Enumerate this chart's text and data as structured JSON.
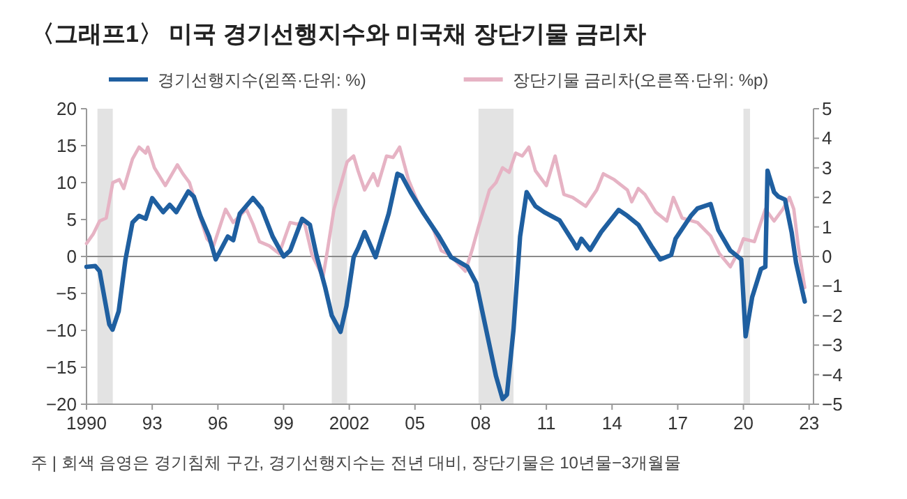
{
  "chart_data": {
    "type": "line",
    "title": "〈그래프1〉 미국 경기선행지수와 미국채 장단기물 금리차",
    "legend": "top",
    "xlim": [
      1990,
      2023.2
    ],
    "xticks": [
      {
        "value": 1990,
        "label": "1990"
      },
      {
        "value": 1993,
        "label": "93"
      },
      {
        "value": 1996,
        "label": "96"
      },
      {
        "value": 1999,
        "label": "99"
      },
      {
        "value": 2002,
        "label": "2002"
      },
      {
        "value": 2005,
        "label": "05"
      },
      {
        "value": 2008,
        "label": "08"
      },
      {
        "value": 2011,
        "label": "11"
      },
      {
        "value": 2014,
        "label": "14"
      },
      {
        "value": 2017,
        "label": "17"
      },
      {
        "value": 2020,
        "label": "20"
      },
      {
        "value": 2023,
        "label": "23"
      }
    ],
    "ylim": [
      -20,
      20
    ],
    "yticks": [
      {
        "value": -20,
        "label": "−20"
      },
      {
        "value": -15,
        "label": "−15"
      },
      {
        "value": -10,
        "label": "−10"
      },
      {
        "value": -5,
        "label": "−5"
      },
      0,
      5,
      10,
      15,
      20
    ],
    "y2lim": [
      -5,
      5
    ],
    "y2ticks": [
      {
        "value": -5,
        "label": "−5"
      },
      {
        "value": -4,
        "label": "−4"
      },
      {
        "value": -3,
        "label": "−3"
      },
      {
        "value": -2,
        "label": "−2"
      },
      {
        "value": -1,
        "label": "−1"
      },
      0,
      1,
      2,
      3,
      4,
      5
    ],
    "bands": [
      {
        "axis": "x",
        "from": 1990.5,
        "to": 1991.2,
        "color": "#e3e3e3"
      },
      {
        "axis": "x",
        "from": 2001.2,
        "to": 2001.9,
        "color": "#e3e3e3"
      },
      {
        "axis": "x",
        "from": 2007.9,
        "to": 2009.5,
        "color": "#e3e3e3"
      },
      {
        "axis": "x",
        "from": 2020.0,
        "to": 2020.3,
        "color": "#e3e3e3"
      }
    ],
    "ref_lines": [
      {
        "axis": "y",
        "value": 0,
        "color": "#8a8a8a"
      }
    ],
    "series": [
      {
        "name": "경기선행지수(왼쪽·단위: %)",
        "color": "#1f5fa0",
        "axis": "y",
        "x": [
          1990.0,
          1990.4,
          1990.6,
          1991.04,
          1991.19,
          1991.47,
          1991.78,
          1992.1,
          1992.4,
          1992.7,
          1993.0,
          1993.5,
          1993.8,
          1994.1,
          1994.65,
          1994.9,
          1995.2,
          1995.6,
          1995.9,
          1996.45,
          1996.7,
          1997.0,
          1997.6,
          1998.0,
          1998.5,
          1999.0,
          1999.3,
          1999.85,
          2000.2,
          2000.5,
          2000.9,
          2001.2,
          2001.6,
          2001.87,
          2002.2,
          2002.4,
          2002.7,
          2003.2,
          2003.8,
          2004.2,
          2004.4,
          2004.8,
          2005.4,
          2006.1,
          2006.65,
          2007.4,
          2007.8,
          2008.2,
          2008.7,
          2009.0,
          2009.2,
          2009.5,
          2009.8,
          2010.1,
          2010.5,
          2010.9,
          2011.6,
          2012.2,
          2012.4,
          2012.6,
          2013.0,
          2013.5,
          2014.3,
          2014.7,
          2015.2,
          2015.8,
          2016.2,
          2016.7,
          2016.9,
          2017.6,
          2017.9,
          2018.5,
          2018.85,
          2019.4,
          2019.9,
          2020.1,
          2020.4,
          2020.8,
          2021.0,
          2021.1,
          2021.4,
          2021.6,
          2021.9,
          2022.2,
          2022.4,
          2022.8
        ],
        "values": [
          -1.4,
          -1.3,
          -2,
          -9.2,
          -9.9,
          -7.4,
          -0.4,
          4.6,
          5.5,
          5.1,
          7.9,
          6.0,
          7.0,
          6.0,
          8.8,
          8.1,
          5.5,
          2.7,
          -0.4,
          2.7,
          2.2,
          5.8,
          7.9,
          6.5,
          2.7,
          0,
          0.8,
          5.1,
          4.3,
          0.2,
          -4.2,
          -8.0,
          -10.2,
          -6.7,
          -0.1,
          1.1,
          3.3,
          -0.1,
          5.8,
          11.2,
          10.9,
          8.7,
          5.8,
          2.7,
          -0.1,
          -1.4,
          -3.6,
          -9.2,
          -16.2,
          -19.3,
          -18.7,
          -9.9,
          2.7,
          8.7,
          6.8,
          6.0,
          4.9,
          2.1,
          1.1,
          2.4,
          0.9,
          3.3,
          6.3,
          5.5,
          4.3,
          1.4,
          -0.4,
          0.2,
          2.4,
          5.5,
          6.5,
          7.1,
          3.6,
          0.8,
          -0.4,
          -10.8,
          -5.5,
          -1.7,
          -1.4,
          11.6,
          8.7,
          8.1,
          7.7,
          3.3,
          -0.8,
          -6.1
        ]
      },
      {
        "name": "장단기물 금리차(오른쪽·단위: %p)",
        "color": "#e6b3c4",
        "axis": "y2",
        "x": [
          1990.0,
          1990.3,
          1990.6,
          1990.9,
          1991.2,
          1991.5,
          1991.7,
          1992.1,
          1992.4,
          1992.7,
          1992.8,
          1993.1,
          1993.6,
          1994.15,
          1994.4,
          1994.7,
          1995.2,
          1995.5,
          1995.8,
          1996.35,
          1996.7,
          1997.3,
          1997.6,
          1997.9,
          1998.35,
          1998.8,
          1999.3,
          1999.6,
          1999.95,
          2000.3,
          2000.8,
          2001.0,
          2001.3,
          2001.9,
          2002.2,
          2002.4,
          2002.7,
          2003.1,
          2003.3,
          2003.7,
          2004.0,
          2004.3,
          2004.7,
          2005.2,
          2005.8,
          2006.2,
          2006.6,
          2007.3,
          2007.6,
          2007.9,
          2008.4,
          2008.7,
          2009.0,
          2009.3,
          2009.6,
          2009.9,
          2010.2,
          2010.5,
          2011.0,
          2011.4,
          2011.8,
          2012.2,
          2012.8,
          2013.3,
          2013.6,
          2014.1,
          2014.7,
          2014.9,
          2015.2,
          2015.5,
          2016.0,
          2016.5,
          2016.8,
          2017.2,
          2017.9,
          2018.5,
          2018.9,
          2019.4,
          2019.8,
          2020.0,
          2020.5,
          2021.0,
          2021.4,
          2021.8,
          2022.1,
          2022.3,
          2022.5,
          2022.8
        ],
        "values": [
          0.44,
          0.75,
          1.2,
          1.3,
          2.5,
          2.6,
          2.3,
          3.3,
          3.7,
          3.5,
          3.7,
          3.0,
          2.4,
          3.1,
          2.8,
          2.5,
          1.3,
          0.6,
          0.36,
          1.6,
          1.15,
          1.6,
          1.1,
          0.5,
          0.36,
          0.1,
          1.15,
          1.1,
          1.15,
          0.05,
          -0.7,
          0.2,
          1.6,
          3.2,
          3.4,
          2.9,
          2.25,
          2.8,
          2.4,
          3.4,
          3.35,
          3.7,
          2.6,
          1.7,
          1.0,
          0.2,
          0.05,
          -0.5,
          0.2,
          1.0,
          2.25,
          2.5,
          3.0,
          2.85,
          3.5,
          3.4,
          3.7,
          2.9,
          2.4,
          3.4,
          2.1,
          2.0,
          1.7,
          2.25,
          2.8,
          2.6,
          2.25,
          1.85,
          2.3,
          2.1,
          1.5,
          1.2,
          2.0,
          1.3,
          1.15,
          0.7,
          0.1,
          -0.35,
          0.2,
          0.6,
          0.5,
          1.6,
          1.2,
          1.6,
          2.0,
          1.6,
          0.36,
          -1.05
        ]
      }
    ],
    "annotations": [
      "주 | 회색 음영은 경기침체 구간, 경기선행지수는 전년 대비, 장단기물은 10년물−3개월물"
    ]
  }
}
